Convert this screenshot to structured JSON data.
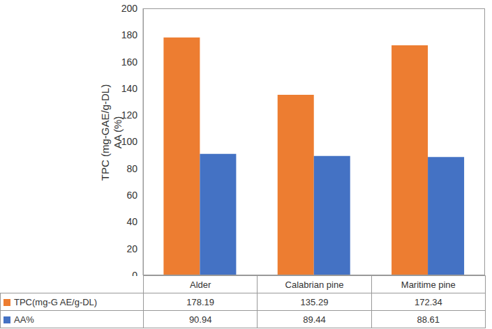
{
  "chart_data": {
    "type": "bar",
    "ylabel": "TPC (mg-GAE/g-DL)\nAA (%)",
    "categories": [
      "Alder",
      "Calabrian pine",
      "Maritime pine"
    ],
    "series": [
      {
        "name": "TPC(mg-G AE/g-DL)",
        "color": "#ed7d31",
        "values": [
          178.19,
          135.29,
          172.34
        ]
      },
      {
        "name": "AA%",
        "color": "#4472c4",
        "values": [
          90.94,
          89.44,
          88.61
        ]
      }
    ],
    "ylim": [
      0,
      200
    ],
    "yticks": [
      0,
      20,
      40,
      60,
      80,
      100,
      120,
      140,
      160,
      180,
      200
    ],
    "grid": false
  }
}
